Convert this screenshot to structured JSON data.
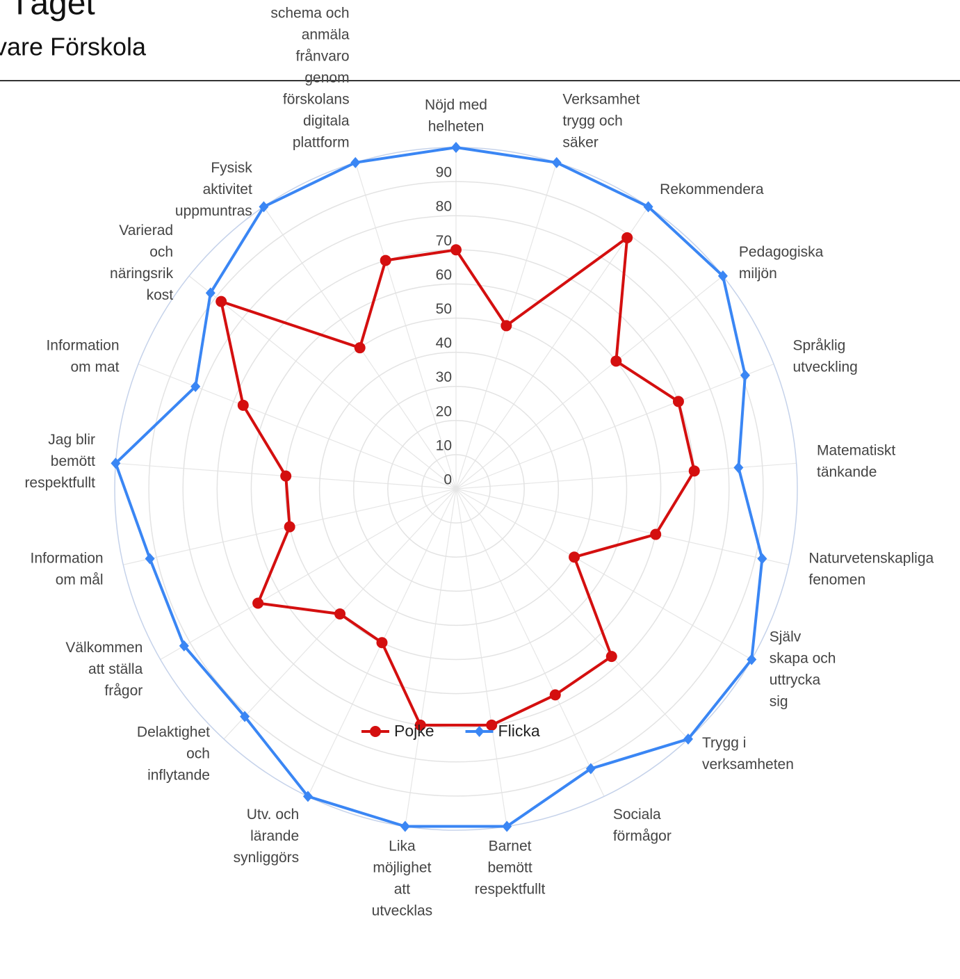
{
  "chart_data": {
    "type": "radar",
    "title": "Tåget",
    "subtitle": "vare Förskola",
    "categories": [
      "Nöjd med helheten",
      "Verksamhet trygg och säker",
      "Rekommendera",
      "Pedagogiska miljön",
      "Språklig utveckling",
      "Matematiskt tänkande",
      "Naturvetenskapliga fenomen",
      "Själv skapa och uttrycka sig",
      "Trygg i verksamheten",
      "Sociala förmågor",
      "Barnet bemött respektfullt",
      "Lika möjlighet att utvecklas",
      "Utv. och lärande synliggörs",
      "Delaktighet och inflytande",
      "Välkommen att ställa frågor",
      "Information om mål",
      "Jag blir bemött respektfullt",
      "Information om mat",
      "Varierad och näringsrik kost",
      "Fysisk aktivitet uppmuntras",
      "Jag känner till att jag kan registrera mitt barns schema och anmäla frånvaro genom förskolans digitala plattform"
    ],
    "series": [
      {
        "name": "Pojke",
        "color": "#d40f0f",
        "marker": "circle",
        "values": [
          70,
          50,
          89,
          60,
          70,
          70,
          60,
          40,
          67,
          67,
          70,
          70,
          50,
          50,
          67,
          50,
          50,
          67,
          88,
          50,
          70
        ]
      },
      {
        "name": "Flicka",
        "color": "#3a86f4",
        "marker": "diamond",
        "values": [
          100,
          100,
          100,
          100,
          91,
          83,
          92,
          100,
          100,
          91,
          100,
          100,
          100,
          91,
          92,
          92,
          100,
          82,
          92,
          100,
          100
        ]
      }
    ],
    "ylim": [
      0,
      100
    ],
    "yticks": [
      0,
      10,
      20,
      30,
      40,
      50,
      60,
      70,
      80,
      90
    ],
    "grid": true,
    "legend": "bottom"
  }
}
